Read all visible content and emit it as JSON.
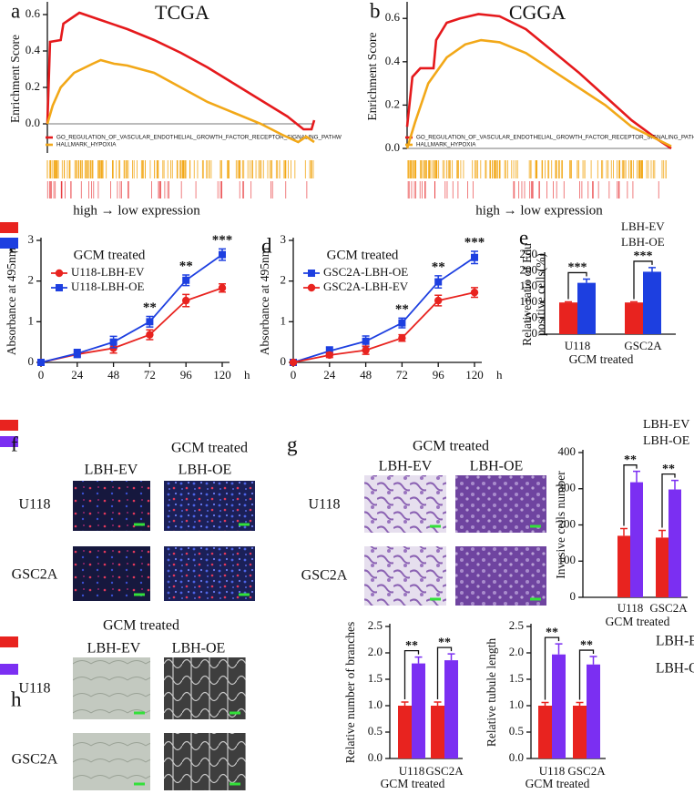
{
  "chart_data": [
    {
      "type": "line",
      "panel": "a",
      "title": "TCGA",
      "ylabel": "Enrichment Score",
      "x_caption": "high → low expression",
      "xlim": [
        0,
        100
      ],
      "ylim": [
        -0.16,
        0.655
      ],
      "yticks": [
        {
          "value": 0,
          "label": "0.0"
        },
        {
          "value": 0.2,
          "label": "0.2"
        },
        {
          "value": 0.4,
          "label": "0.4"
        },
        {
          "value": 0.6,
          "label": "0.6"
        }
      ],
      "zero_line": true,
      "series": [
        {
          "name": "GO_REGULATION_OF_VASCULAR_ENDOTHELIAL_GROWTH_FACTOR_RECEPTOR_SIGNALING_PATHW",
          "color": "#e5191c",
          "x": [
            0,
            1,
            5,
            6,
            12,
            20,
            30,
            40,
            50,
            60,
            70,
            80,
            90,
            96,
            99,
            100
          ],
          "values": [
            0,
            0.45,
            0.46,
            0.55,
            0.61,
            0.57,
            0.52,
            0.46,
            0.39,
            0.31,
            0.22,
            0.13,
            0.04,
            -0.03,
            -0.03,
            0.02
          ]
        },
        {
          "name": "HALLMARK_HYPOXIA",
          "color": "#f2a818",
          "x": [
            0,
            2,
            5,
            10,
            17,
            20,
            25,
            30,
            40,
            50,
            60,
            70,
            80,
            88,
            94,
            97,
            100
          ],
          "values": [
            0,
            0.1,
            0.2,
            0.28,
            0.33,
            0.35,
            0.33,
            0.32,
            0.28,
            0.2,
            0.12,
            0.06,
            0,
            -0.06,
            -0.1,
            -0.07,
            -0.1
          ]
        }
      ]
    },
    {
      "type": "line",
      "panel": "b",
      "title": "CGGA",
      "ylabel": "Enrichment Score",
      "x_caption": "high → low expression",
      "xlim": [
        0,
        100
      ],
      "ylim": [
        0,
        0.664
      ],
      "yticks": [
        {
          "value": 0,
          "label": "0.0"
        },
        {
          "value": 0.2,
          "label": "0.2"
        },
        {
          "value": 0.4,
          "label": "0.4"
        },
        {
          "value": 0.6,
          "label": "0.6"
        }
      ],
      "zero_line": true,
      "series": [
        {
          "name": "GO_REGULATION_OF_VASCULAR_ENDOTHELIAL_GROWTH_FACTOR_RECEPTOR_SIGNALING_PATHW",
          "color": "#e5191c",
          "x": [
            0,
            2,
            5,
            10,
            11,
            15,
            20,
            27,
            35,
            45,
            55,
            65,
            75,
            85,
            95,
            100
          ],
          "values": [
            0.1,
            0.33,
            0.37,
            0.37,
            0.5,
            0.58,
            0.6,
            0.62,
            0.61,
            0.55,
            0.45,
            0.35,
            0.24,
            0.13,
            0.04,
            0
          ]
        },
        {
          "name": "HALLMARK_HYPOXIA",
          "color": "#f2a818",
          "x": [
            0,
            3,
            8,
            15,
            22,
            28,
            35,
            45,
            55,
            65,
            75,
            85,
            95,
            100
          ],
          "values": [
            0,
            0.12,
            0.3,
            0.42,
            0.48,
            0.5,
            0.49,
            0.44,
            0.36,
            0.28,
            0.2,
            0.1,
            0.04,
            0.01
          ]
        }
      ]
    },
    {
      "type": "line",
      "panel": "c",
      "ylabel": "Absorbance at 495nm",
      "annotation": "GCM treated",
      "x_unit": "h",
      "x": [
        0,
        24,
        48,
        72,
        96,
        120
      ],
      "xlim": [
        0,
        120
      ],
      "ylim": [
        0,
        3
      ],
      "xticks": [
        0,
        24,
        48,
        72,
        96,
        120
      ],
      "yticks": [
        0,
        1,
        2,
        3
      ],
      "series": [
        {
          "name": "U118-LBH-EV",
          "color": "#e8231f",
          "marker": "circle",
          "values": [
            0,
            0.2,
            0.35,
            0.68,
            1.52,
            1.83
          ],
          "errors": [
            0.02,
            0.06,
            0.12,
            0.12,
            0.15,
            0.1
          ]
        },
        {
          "name": "U118-LBH-OE",
          "color": "#1d3fe0",
          "marker": "square",
          "values": [
            0,
            0.22,
            0.5,
            1.0,
            2.02,
            2.65
          ],
          "errors": [
            0.02,
            0.1,
            0.14,
            0.13,
            0.13,
            0.14
          ]
        }
      ],
      "significance": [
        {
          "x": 72,
          "label": "**"
        },
        {
          "x": 96,
          "label": "**"
        },
        {
          "x": 120,
          "label": "***"
        }
      ]
    },
    {
      "type": "line",
      "panel": "d",
      "ylabel": "Absorbance at 495nm",
      "annotation": "GCM treated",
      "x_unit": "h",
      "x": [
        0,
        24,
        48,
        72,
        96,
        120
      ],
      "xlim": [
        0,
        120
      ],
      "ylim": [
        0,
        3
      ],
      "xticks": [
        0,
        24,
        48,
        72,
        96,
        120
      ],
      "yticks": [
        0,
        1,
        2,
        3
      ],
      "series": [
        {
          "name": "GSC2A-LBH-OE",
          "color": "#1d3fe0",
          "marker": "square",
          "values": [
            0,
            0.28,
            0.52,
            0.97,
            1.98,
            2.58
          ],
          "errors": [
            0.02,
            0.1,
            0.13,
            0.12,
            0.15,
            0.15
          ]
        },
        {
          "name": "GSC2A-LBH-EV",
          "color": "#e8231f",
          "marker": "circle",
          "values": [
            0,
            0.18,
            0.3,
            0.6,
            1.52,
            1.72
          ],
          "errors": [
            0.02,
            0.06,
            0.1,
            0.08,
            0.13,
            0.12
          ]
        }
      ],
      "significance": [
        {
          "x": 72,
          "label": "**"
        },
        {
          "x": 96,
          "label": "**"
        },
        {
          "x": 120,
          "label": "***"
        }
      ]
    },
    {
      "type": "bar",
      "panel": "e",
      "ylabel": [
        "Relative ratio of Edu",
        "positive cells(%)"
      ],
      "xlabel": "GCM treated",
      "categories": [
        "U118",
        "GSC2A"
      ],
      "ylim": [
        0,
        250
      ],
      "yticks": [
        0,
        50,
        100,
        150,
        200,
        250
      ],
      "series": [
        {
          "name": "LBH-EV",
          "color": "#e8231f",
          "values": [
            100,
            100
          ],
          "errors": [
            2,
            2
          ]
        },
        {
          "name": "LBH-OE",
          "color": "#1d3fe0",
          "values": [
            162,
            197
          ],
          "errors": [
            12,
            13
          ]
        }
      ],
      "significance": [
        "***",
        "***"
      ]
    },
    {
      "type": "bar",
      "ylabel": "Invasive cells number",
      "xlabel": "GCM treated",
      "categories": [
        "U118",
        "GSC2A"
      ],
      "ylim": [
        0,
        400
      ],
      "yticks": [
        0,
        100,
        200,
        300,
        400
      ],
      "series": [
        {
          "name": "LBH-EV",
          "color": "#e8231f",
          "values": [
            170,
            165
          ],
          "errors": [
            20,
            20
          ]
        },
        {
          "name": "LBH-OE",
          "color": "#7b2ff2",
          "values": [
            318,
            298
          ],
          "errors": [
            30,
            25
          ]
        }
      ],
      "significance": [
        "**",
        "**"
      ]
    },
    {
      "type": "bar",
      "ylabel": "Relative number of branches",
      "xlabel": "GCM treated",
      "categories": [
        "U118",
        "GSC2A"
      ],
      "ylim": [
        0,
        2.5
      ],
      "yticks": [
        {
          "value": 0,
          "label": "0.0"
        },
        {
          "value": 0.5,
          "label": "0.5"
        },
        {
          "value": 1,
          "label": "1.0"
        },
        {
          "value": 1.5,
          "label": "1.5"
        },
        {
          "value": 2,
          "label": "2.0"
        },
        {
          "value": 2.5,
          "label": "2.5"
        }
      ],
      "series": [
        {
          "name": "LBH-EV",
          "color": "#e8231f",
          "values": [
            1.0,
            1.0
          ],
          "errors": [
            0.07,
            0.07
          ]
        },
        {
          "name": "LBH-OE",
          "color": "#7b2ff2",
          "values": [
            1.8,
            1.86
          ],
          "errors": [
            0.12,
            0.12
          ]
        }
      ],
      "significance": [
        "**",
        "**"
      ]
    },
    {
      "type": "bar",
      "ylabel": "Relative tubule length",
      "xlabel": "GCM treated",
      "categories": [
        "U118",
        "GSC2A"
      ],
      "ylim": [
        0,
        2.5
      ],
      "yticks": [
        {
          "value": 0,
          "label": "0.0"
        },
        {
          "value": 0.5,
          "label": "0.5"
        },
        {
          "value": 1,
          "label": "1.0"
        },
        {
          "value": 1.5,
          "label": "1.5"
        },
        {
          "value": 2,
          "label": "2.0"
        },
        {
          "value": 2.5,
          "label": "2.5"
        }
      ],
      "series": [
        {
          "color": "#e8231f",
          "values": [
            1.0,
            1.0
          ],
          "errors": [
            0.06,
            0.06
          ]
        },
        {
          "color": "#7b2ff2",
          "values": [
            1.97,
            1.78
          ],
          "errors": [
            0.2,
            0.15
          ]
        }
      ],
      "significance": [
        "**",
        "**"
      ]
    }
  ],
  "image_panels": [
    {
      "panel": "f",
      "title": "GCM treated",
      "columns": [
        "LBH-EV",
        "LBH-OE"
      ],
      "rows": [
        "U118",
        "GSC2A"
      ]
    },
    {
      "panel": "g",
      "title": "GCM treated",
      "columns": [
        "LBH-EV",
        "LBH-OE"
      ],
      "rows": [
        "U118",
        "GSC2A"
      ]
    },
    {
      "panel": "h",
      "title": "GCM treated",
      "columns": [
        "LBH-EV",
        "LBH-OE"
      ],
      "rows": [
        "U118",
        "GSC2A"
      ]
    }
  ]
}
